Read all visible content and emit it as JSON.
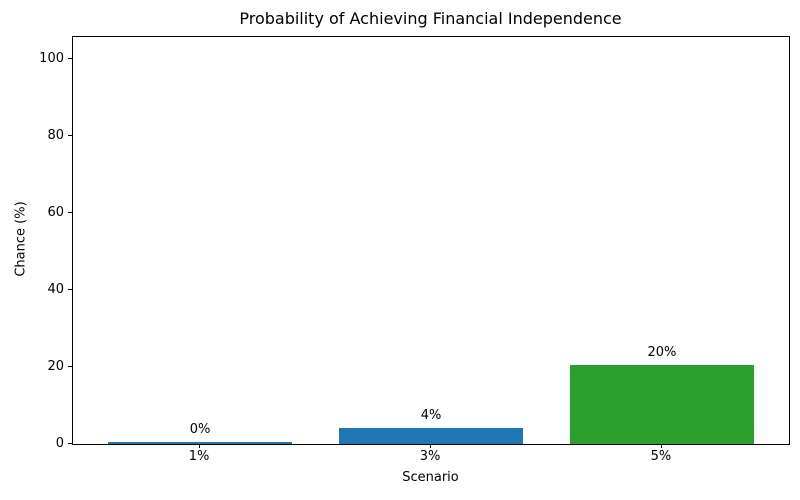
{
  "chart_data": {
    "type": "bar",
    "title": "Probability of Achieving Financial Independence",
    "xlabel": "Scenario",
    "ylabel": "Chance (%)",
    "categories": [
      "1%",
      "3%",
      "5%"
    ],
    "values": [
      0.5,
      4.2,
      20.5
    ],
    "bar_labels": [
      "0%",
      "4%",
      "20%"
    ],
    "bar_colors": [
      "#1f77b4",
      "#1f77b4",
      "#2ca02c"
    ],
    "yticks": [
      0,
      20,
      40,
      60,
      80,
      100
    ],
    "ylim": [
      0,
      105.8
    ],
    "grid": false,
    "legend": false,
    "frame": "full-box",
    "text_color": "#000000",
    "background_color": "#ffffff"
  }
}
